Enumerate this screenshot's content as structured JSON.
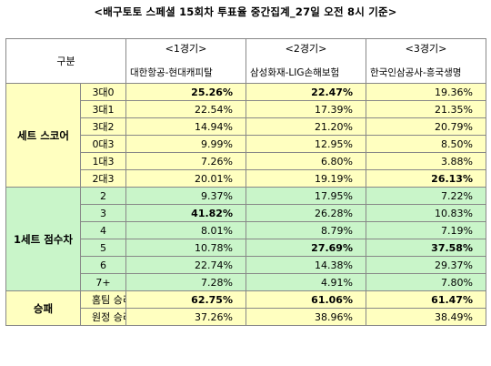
{
  "title": "<배구토토 스페셜 15회차 투표율 중간집계_27일 오전 8시 기준>",
  "header": {
    "gubun": "구분",
    "games": [
      {
        "round": "<1경기>",
        "match": "대한항공-현대캐피탈"
      },
      {
        "round": "<2경기>",
        "match": "삼성화재-LIG손해보험"
      },
      {
        "round": "<3경기>",
        "match": "한국인삼공사-흥국생명"
      }
    ]
  },
  "sections": [
    {
      "category": "세트 스코어",
      "color": "#ffffc0",
      "rows": [
        {
          "label": "3대0",
          "v": [
            "25.26%",
            "22.47%",
            "19.36%"
          ],
          "bold": [
            true,
            true,
            false
          ]
        },
        {
          "label": "3대1",
          "v": [
            "22.54%",
            "17.39%",
            "21.35%"
          ],
          "bold": [
            false,
            false,
            false
          ]
        },
        {
          "label": "3대2",
          "v": [
            "14.94%",
            "21.20%",
            "20.79%"
          ],
          "bold": [
            false,
            false,
            false
          ]
        },
        {
          "label": "0대3",
          "v": [
            "9.99%",
            "12.95%",
            "8.50%"
          ],
          "bold": [
            false,
            false,
            false
          ]
        },
        {
          "label": "1대3",
          "v": [
            "7.26%",
            "6.80%",
            "3.88%"
          ],
          "bold": [
            false,
            false,
            false
          ]
        },
        {
          "label": "2대3",
          "v": [
            "20.01%",
            "19.19%",
            "26.13%"
          ],
          "bold": [
            false,
            false,
            true
          ]
        }
      ]
    },
    {
      "category": "1세트 점수차",
      "color": "#c9f5c9",
      "rows": [
        {
          "label": "2",
          "v": [
            "9.37%",
            "17.95%",
            "7.22%"
          ],
          "bold": [
            false,
            false,
            false
          ]
        },
        {
          "label": "3",
          "v": [
            "41.82%",
            "26.28%",
            "10.83%"
          ],
          "bold": [
            true,
            false,
            false
          ]
        },
        {
          "label": "4",
          "v": [
            "8.01%",
            "8.79%",
            "7.19%"
          ],
          "bold": [
            false,
            false,
            false
          ]
        },
        {
          "label": "5",
          "v": [
            "10.78%",
            "27.69%",
            "37.58%"
          ],
          "bold": [
            false,
            true,
            true
          ]
        },
        {
          "label": "6",
          "v": [
            "22.74%",
            "14.38%",
            "29.37%"
          ],
          "bold": [
            false,
            false,
            false
          ]
        },
        {
          "label": "7+",
          "v": [
            "7.28%",
            "4.91%",
            "7.80%"
          ],
          "bold": [
            false,
            false,
            false
          ]
        }
      ]
    },
    {
      "category": "승패",
      "color": "#ffffc0",
      "rows": [
        {
          "label": "홈팀 승리",
          "v": [
            "62.75%",
            "61.06%",
            "61.47%"
          ],
          "bold": [
            true,
            true,
            true
          ]
        },
        {
          "label": "원정 승리",
          "v": [
            "37.26%",
            "38.96%",
            "38.49%"
          ],
          "bold": [
            false,
            false,
            false
          ]
        }
      ]
    }
  ]
}
